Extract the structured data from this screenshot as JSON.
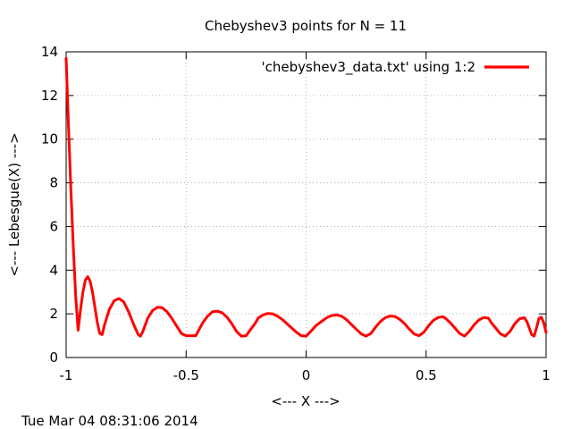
{
  "timestamp": "Tue Mar 04 08:31:06 2014",
  "chart_data": {
    "type": "line",
    "title": "Chebyshev3 points for N = 11",
    "xlabel": "<--- X --->",
    "ylabel": "<--- Lebesgue(X) --->",
    "xlim": [
      -1,
      1
    ],
    "ylim": [
      0,
      14
    ],
    "xticks": [
      -1,
      -0.5,
      0,
      0.5,
      1
    ],
    "xtick_labels": [
      "-1",
      "-0.5",
      "0",
      "0.5",
      "1"
    ],
    "yticks": [
      0,
      2,
      4,
      6,
      8,
      10,
      12,
      14
    ],
    "ytick_labels": [
      "0",
      "2",
      "4",
      "6",
      "8",
      "10",
      "12",
      "14"
    ],
    "grid": true,
    "legend_position": "top-right",
    "series": [
      {
        "name": "'chebyshev3_data.txt' using 1:2",
        "color": "#ff0000",
        "x": [
          -1.0,
          -0.99,
          -0.98,
          -0.97,
          -0.96,
          -0.95,
          -0.94,
          -0.93,
          -0.92,
          -0.91,
          -0.9,
          -0.89,
          -0.88,
          -0.87,
          -0.86,
          -0.85,
          -0.84,
          -0.82,
          -0.8,
          -0.78,
          -0.76,
          -0.74,
          -0.72,
          -0.7,
          -0.69,
          -0.68,
          -0.66,
          -0.64,
          -0.62,
          -0.6,
          -0.58,
          -0.56,
          -0.54,
          -0.52,
          -0.5,
          -0.48,
          -0.46,
          -0.45,
          -0.43,
          -0.41,
          -0.39,
          -0.37,
          -0.35,
          -0.33,
          -0.31,
          -0.29,
          -0.27,
          -0.25,
          -0.23,
          -0.21,
          -0.2,
          -0.18,
          -0.16,
          -0.14,
          -0.12,
          -0.1,
          -0.08,
          -0.06,
          -0.04,
          -0.02,
          0.0,
          0.02,
          0.04,
          0.07,
          0.09,
          0.11,
          0.13,
          0.15,
          0.17,
          0.19,
          0.21,
          0.23,
          0.25,
          0.27,
          0.29,
          0.31,
          0.33,
          0.35,
          0.37,
          0.39,
          0.41,
          0.43,
          0.45,
          0.47,
          0.49,
          0.51,
          0.53,
          0.55,
          0.57,
          0.58,
          0.6,
          0.62,
          0.64,
          0.66,
          0.68,
          0.7,
          0.72,
          0.74,
          0.76,
          0.77,
          0.79,
          0.81,
          0.83,
          0.85,
          0.87,
          0.89,
          0.91,
          0.92,
          0.93,
          0.94,
          0.95,
          0.96,
          0.97,
          0.98,
          0.99,
          1.0
        ],
        "y": [
          13.7,
          10.5,
          7.6,
          5.0,
          2.8,
          1.25,
          2.2,
          3.0,
          3.55,
          3.7,
          3.5,
          3.0,
          2.3,
          1.6,
          1.1,
          1.05,
          1.5,
          2.2,
          2.6,
          2.7,
          2.55,
          2.1,
          1.55,
          1.05,
          0.98,
          1.2,
          1.8,
          2.15,
          2.3,
          2.28,
          2.1,
          1.8,
          1.45,
          1.1,
          1.0,
          1.0,
          1.0,
          1.2,
          1.6,
          1.9,
          2.1,
          2.12,
          2.05,
          1.85,
          1.55,
          1.2,
          0.98,
          1.0,
          1.3,
          1.6,
          1.8,
          1.95,
          2.02,
          2.0,
          1.9,
          1.75,
          1.55,
          1.35,
          1.15,
          1.0,
          0.98,
          1.2,
          1.45,
          1.7,
          1.85,
          1.93,
          1.95,
          1.88,
          1.72,
          1.5,
          1.28,
          1.08,
          0.98,
          1.1,
          1.4,
          1.65,
          1.82,
          1.9,
          1.88,
          1.75,
          1.55,
          1.3,
          1.08,
          1.0,
          1.15,
          1.45,
          1.7,
          1.83,
          1.87,
          1.8,
          1.6,
          1.35,
          1.1,
          0.98,
          1.2,
          1.5,
          1.72,
          1.83,
          1.8,
          1.62,
          1.35,
          1.08,
          0.98,
          1.2,
          1.55,
          1.78,
          1.82,
          1.65,
          1.35,
          1.05,
          0.98,
          1.35,
          1.78,
          1.85,
          1.6,
          1.15
        ]
      }
    ]
  }
}
